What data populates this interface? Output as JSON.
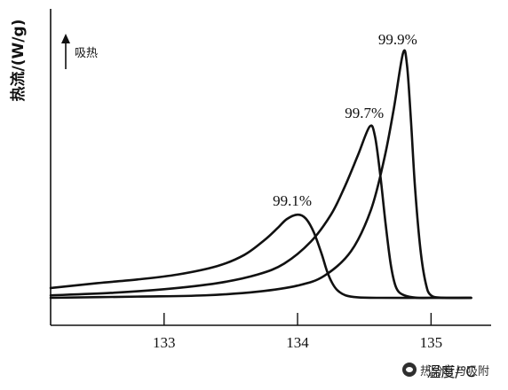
{
  "chart_data": {
    "type": "line",
    "ylabel": "热流/(W/g)",
    "xlabel": "温度/℃",
    "endotherm_label": "吸热",
    "x_ticks": [
      133,
      134,
      135
    ],
    "xlim": [
      132.15,
      135.45
    ],
    "ylim": [
      0,
      1.0
    ],
    "grid": false,
    "series": [
      {
        "name": "99.1%",
        "peak": [
          134.0,
          0.34
        ],
        "x": [
          132.15,
          132.5,
          132.8,
          133.1,
          133.4,
          133.6,
          133.75,
          133.85,
          133.92,
          134.0,
          134.06,
          134.12,
          134.18,
          134.22,
          134.26,
          134.3,
          134.36,
          134.45,
          134.6,
          135.0,
          135.3
        ],
        "values": [
          0.04,
          0.06,
          0.075,
          0.095,
          0.13,
          0.175,
          0.235,
          0.285,
          0.322,
          0.34,
          0.325,
          0.27,
          0.18,
          0.11,
          0.06,
          0.03,
          0.01,
          0.002,
          0.0,
          0.0,
          0.0
        ]
      },
      {
        "name": "99.7%",
        "peak": [
          134.54,
          0.7
        ],
        "x": [
          132.15,
          132.6,
          133.0,
          133.4,
          133.7,
          133.9,
          134.1,
          134.25,
          134.35,
          134.45,
          134.54,
          134.58,
          134.62,
          134.66,
          134.7,
          134.74,
          134.8,
          134.9,
          135.0,
          135.3
        ],
        "values": [
          0.01,
          0.02,
          0.035,
          0.06,
          0.095,
          0.14,
          0.23,
          0.34,
          0.45,
          0.58,
          0.7,
          0.66,
          0.5,
          0.3,
          0.13,
          0.04,
          0.01,
          0.0,
          0.0,
          0.0
        ]
      },
      {
        "name": "99.9%",
        "peak": [
          134.79,
          1.0
        ],
        "x": [
          132.15,
          132.8,
          133.3,
          133.7,
          134.0,
          134.2,
          134.4,
          134.55,
          134.65,
          134.72,
          134.79,
          134.82,
          134.85,
          134.88,
          134.92,
          134.96,
          135.0,
          135.1,
          135.3
        ],
        "values": [
          0.0,
          0.005,
          0.01,
          0.025,
          0.05,
          0.09,
          0.19,
          0.36,
          0.57,
          0.77,
          1.0,
          0.95,
          0.72,
          0.45,
          0.2,
          0.06,
          0.01,
          0.0,
          0.0
        ]
      }
    ],
    "annotations": [
      "99.1%",
      "99.7%",
      "99.9%"
    ]
  },
  "watermark": "热分析与吸附"
}
